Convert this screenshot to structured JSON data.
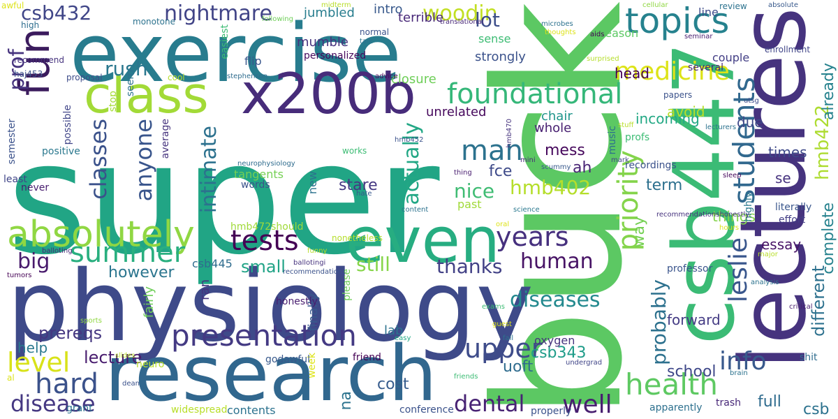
{
  "words": [
    {
      "text": "super",
      "color": "#21a585"
    },
    {
      "text": "buck",
      "color": "#5cc863"
    },
    {
      "text": "physiology",
      "color": "#3e4a89"
    },
    {
      "text": "lectures",
      "color": "#46337e"
    },
    {
      "text": "exercise",
      "color": "#287c8e"
    },
    {
      "text": "research",
      "color": "#31678e"
    },
    {
      "text": "csb447",
      "color": "#3bbb75"
    },
    {
      "text": "even",
      "color": "#27ad81"
    },
    {
      "text": "class",
      "color": "#a2da37"
    },
    {
      "text": "x200b",
      "color": "#472c7a"
    },
    {
      "text": "fun",
      "color": "#3b1b5d"
    },
    {
      "text": "topics",
      "color": "#26828e"
    },
    {
      "text": "absolutely",
      "color": "#90d743"
    },
    {
      "text": "presentation",
      "color": "#443a83"
    },
    {
      "text": "foundational",
      "color": "#35b779"
    },
    {
      "text": "medicine",
      "color": "#dde318"
    },
    {
      "text": "health",
      "color": "#5ec962"
    },
    {
      "text": "students",
      "color": "#31688e"
    },
    {
      "text": "hard",
      "color": "#3b528b"
    },
    {
      "text": "tests",
      "color": "#440154"
    },
    {
      "text": "summer",
      "color": "#29af7f"
    },
    {
      "text": "man",
      "color": "#2c728e"
    },
    {
      "text": "years",
      "color": "#46307e"
    },
    {
      "text": "diseases",
      "color": "#23898e"
    },
    {
      "text": "level",
      "color": "#d8e219"
    },
    {
      "text": "big",
      "color": "#481a6c"
    },
    {
      "text": "disease",
      "color": "#453882"
    },
    {
      "text": "csb432",
      "color": "#404688"
    },
    {
      "text": "rush",
      "color": "#2a778e"
    },
    {
      "text": "nightmare",
      "color": "#414487"
    },
    {
      "text": "woodin",
      "color": "#c2df23"
    },
    {
      "text": "human",
      "color": "#471365"
    },
    {
      "text": "thanks",
      "color": "#424186"
    },
    {
      "text": "priority",
      "color": "#84d44b"
    },
    {
      "text": "upper",
      "color": "#3e4c8a"
    },
    {
      "text": "dental",
      "color": "#482374"
    },
    {
      "text": "well",
      "color": "#481f70"
    },
    {
      "text": "leslie",
      "color": "#39568c"
    },
    {
      "text": "info",
      "color": "#38598c"
    },
    {
      "text": "classes",
      "color": "#3b528b"
    },
    {
      "text": "anyone",
      "color": "#39558c"
    },
    {
      "text": "intimate",
      "color": "#2c718e"
    },
    {
      "text": "hmb402",
      "color": "#b5de2b"
    },
    {
      "text": "nice",
      "color": "#3fbc73"
    },
    {
      "text": "actually",
      "color": "#22a785"
    },
    {
      "text": "probably",
      "color": "#2d718e"
    },
    {
      "text": "hmb422",
      "color": "#addc30"
    },
    {
      "text": "prof",
      "color": "#46337e"
    },
    {
      "text": "lot",
      "color": "#3d4e8a"
    },
    {
      "text": "still",
      "color": "#86d549"
    },
    {
      "text": "small",
      "color": "#20a386"
    },
    {
      "text": "however",
      "color": "#2b758e"
    },
    {
      "text": "prereqs",
      "color": "#453781"
    },
    {
      "text": "lecture",
      "color": "#481c6e"
    },
    {
      "text": "different",
      "color": "#2d718e"
    },
    {
      "text": "complete",
      "color": "#26828e"
    },
    {
      "text": "already",
      "color": "#26828e"
    },
    {
      "text": "fce",
      "color": "#3e4a89"
    },
    {
      "text": "way",
      "color": "#75d054"
    },
    {
      "text": "ah",
      "color": "#482475"
    },
    {
      "text": "term",
      "color": "#2d708e"
    },
    {
      "text": "mess",
      "color": "#46085c"
    },
    {
      "text": "stare",
      "color": "#453882"
    },
    {
      "text": "uoft",
      "color": "#2f6c8e"
    },
    {
      "text": "csb343",
      "color": "#1e9c89"
    },
    {
      "text": "cost",
      "color": "#365c8d"
    },
    {
      "text": "na",
      "color": "#2c738e"
    },
    {
      "text": "school",
      "color": "#3f4889"
    },
    {
      "text": "full",
      "color": "#2f6b8e"
    },
    {
      "text": "csb",
      "color": "#2c728e"
    },
    {
      "text": "essay",
      "color": "#481467"
    },
    {
      "text": "forward",
      "color": "#443b84"
    },
    {
      "text": "things",
      "color": "#84d44b"
    },
    {
      "text": "se",
      "color": "#46327e"
    },
    {
      "text": "due",
      "color": "#3e4989"
    },
    {
      "text": "times",
      "color": "#3e4989"
    },
    {
      "text": "incoming",
      "color": "#22a884"
    },
    {
      "text": "avoid",
      "color": "#b8de29"
    },
    {
      "text": "head",
      "color": "#440154"
    },
    {
      "text": "chair",
      "color": "#1f958b"
    },
    {
      "text": "whole",
      "color": "#482071"
    },
    {
      "text": "unrelated",
      "color": "#46085c"
    },
    {
      "text": "closure",
      "color": "#6ece58"
    },
    {
      "text": "strongly",
      "color": "#3b528b"
    },
    {
      "text": "intro",
      "color": "#38598c"
    },
    {
      "text": "terrible",
      "color": "#482878"
    },
    {
      "text": "jumbled",
      "color": "#287d8e"
    },
    {
      "text": "mumble",
      "color": "#46337e"
    },
    {
      "text": "flip",
      "color": "#39568c"
    },
    {
      "text": "sense",
      "color": "#3dbc74"
    },
    {
      "text": "reason",
      "color": "#5cc863"
    },
    {
      "text": "couple",
      "color": "#433e85"
    },
    {
      "text": "line",
      "color": "#3e4c8a"
    },
    {
      "text": "several",
      "color": "#472a7a"
    },
    {
      "text": "highly",
      "color": "#2a788e"
    },
    {
      "text": "professor",
      "color": "#3a548c"
    },
    {
      "text": "literally",
      "color": "#39568c"
    },
    {
      "text": "effort",
      "color": "#433e85"
    },
    {
      "text": "shit",
      "color": "#2f6c8e"
    },
    {
      "text": "trash",
      "color": "#482878"
    },
    {
      "text": "apparently",
      "color": "#2d708e"
    },
    {
      "text": "recordings",
      "color": "#3b528b"
    },
    {
      "text": "profs",
      "color": "#3dbc74"
    },
    {
      "text": "music",
      "color": "#2d708e"
    },
    {
      "text": "tangents",
      "color": "#75d054"
    },
    {
      "text": "past",
      "color": "#a0da39"
    },
    {
      "text": "words",
      "color": "#3b528b"
    },
    {
      "text": "least",
      "color": "#404588"
    },
    {
      "text": "never",
      "color": "#481d6f"
    },
    {
      "text": "average",
      "color": "#46337e"
    },
    {
      "text": "positive",
      "color": "#2a788e"
    },
    {
      "text": "semester",
      "color": "#3b528b"
    },
    {
      "text": "possible",
      "color": "#404588"
    },
    {
      "text": "stop",
      "color": "#a5db36"
    },
    {
      "text": "seem",
      "color": "#2c728e"
    },
    {
      "text": "high",
      "color": "#2e6e8e"
    },
    {
      "text": "monotone",
      "color": "#2c728e"
    },
    {
      "text": "recommend",
      "color": "#46337e"
    },
    {
      "text": "haj453",
      "color": "#3b528b"
    },
    {
      "text": "proposal",
      "color": "#3e4c8a"
    },
    {
      "text": "cool",
      "color": "#b5de2b"
    },
    {
      "text": "easiest",
      "color": "#3dbc74"
    },
    {
      "text": "stephenson",
      "color": "#2f6c8e"
    },
    {
      "text": "following",
      "color": "#6ece58"
    },
    {
      "text": "personalized",
      "color": "#46085c"
    },
    {
      "text": "normal",
      "color": "#3b528b"
    },
    {
      "text": "talk",
      "color": "#2c728e"
    },
    {
      "text": "advice",
      "color": "#46085c"
    },
    {
      "text": "midterm",
      "color": "#b8de29"
    },
    {
      "text": "translational",
      "color": "#482878"
    },
    {
      "text": "thoughts",
      "color": "#dde318"
    },
    {
      "text": "microbes",
      "color": "#2c728e"
    },
    {
      "text": "aids",
      "color": "#440154"
    },
    {
      "text": "cellular",
      "color": "#90d743"
    },
    {
      "text": "seminar",
      "color": "#481d6f"
    },
    {
      "text": "review",
      "color": "#2c728e"
    },
    {
      "text": "absolute",
      "color": "#38598c"
    },
    {
      "text": "enrollment",
      "color": "#404588"
    },
    {
      "text": "surprised",
      "color": "#b5de2b"
    },
    {
      "text": "papers",
      "color": "#3b528b"
    },
    {
      "text": "utsg",
      "color": "#3e4c8a"
    },
    {
      "text": "hmb470",
      "color": "#46337e"
    },
    {
      "text": "stuff",
      "color": "#b8de29"
    },
    {
      "text": "lecturers",
      "color": "#2c728e"
    },
    {
      "text": "mini",
      "color": "#482878"
    },
    {
      "text": "scummy",
      "color": "#38598c"
    },
    {
      "text": "mark",
      "color": "#404588"
    },
    {
      "text": "sleep",
      "color": "#46085c"
    },
    {
      "text": "hmb452",
      "color": "#3b528b"
    },
    {
      "text": "neurophysiology",
      "color": "#2f6c8e"
    },
    {
      "text": "thing",
      "color": "#481d6f"
    },
    {
      "text": "science",
      "color": "#2a788e"
    },
    {
      "text": "recommendationshonestly",
      "color": "#46337e"
    },
    {
      "text": "hours",
      "color": "#dde318"
    },
    {
      "text": "major",
      "color": "#b8de29"
    },
    {
      "text": "analysis",
      "color": "#2c728e"
    },
    {
      "text": "hate",
      "color": "#38598c"
    },
    {
      "text": "content",
      "color": "#2c728e"
    },
    {
      "text": "oral",
      "color": "#dde318"
    },
    {
      "text": "works",
      "color": "#3dbc74"
    },
    {
      "text": "new",
      "color": "#2c728e"
    },
    {
      "text": "hmb472should",
      "color": "#a0da39"
    },
    {
      "text": "nonetheless",
      "color": "#b5de2b"
    },
    {
      "text": "funny",
      "color": "#b8de29"
    },
    {
      "text": "balloting",
      "color": "#482878"
    },
    {
      "text": "tumors",
      "color": "#440154"
    },
    {
      "text": "ballotingi",
      "color": "#46337e"
    },
    {
      "text": "recommendations",
      "color": "#3b528b"
    },
    {
      "text": "csb445",
      "color": "#2f6c8e"
    },
    {
      "text": "ran",
      "color": "#46337e"
    },
    {
      "text": "fairly",
      "color": "#6ece58"
    },
    {
      "text": "finally",
      "color": "#38598c"
    },
    {
      "text": "please",
      "color": "#6ece58"
    },
    {
      "text": "honestly",
      "color": "#481d6f"
    },
    {
      "text": "lab",
      "color": "#2c728e"
    },
    {
      "text": "easy",
      "color": "#22a884"
    },
    {
      "text": "guest",
      "color": "#dde318"
    },
    {
      "text": "exams",
      "color": "#3dbc74"
    },
    {
      "text": "fall",
      "color": "#2c728e"
    },
    {
      "text": "oxygen",
      "color": "#46337e"
    },
    {
      "text": "undergrad",
      "color": "#404588"
    },
    {
      "text": "brain",
      "color": "#2c728e"
    },
    {
      "text": "critical",
      "color": "#481d6f"
    },
    {
      "text": "sports",
      "color": "#90d743"
    },
    {
      "text": "help",
      "color": "#2a788e"
    },
    {
      "text": "slides",
      "color": "#b8de29"
    },
    {
      "text": "neuro",
      "color": "#b8de29"
    },
    {
      "text": "al",
      "color": "#dde318"
    },
    {
      "text": "dean",
      "color": "#3b528b"
    },
    {
      "text": "week",
      "color": "#dde318"
    },
    {
      "text": "godawful",
      "color": "#38598c"
    },
    {
      "text": "friend",
      "color": "#440154"
    },
    {
      "text": "friends",
      "color": "#3dbc74"
    },
    {
      "text": "grant",
      "color": "#2c728e"
    },
    {
      "text": "widespread",
      "color": "#b8de29"
    },
    {
      "text": "contents",
      "color": "#2c728e"
    },
    {
      "text": "conference",
      "color": "#3b528b"
    },
    {
      "text": "properly",
      "color": "#3b528b"
    },
    {
      "text": "awful",
      "color": "#dde318"
    }
  ]
}
